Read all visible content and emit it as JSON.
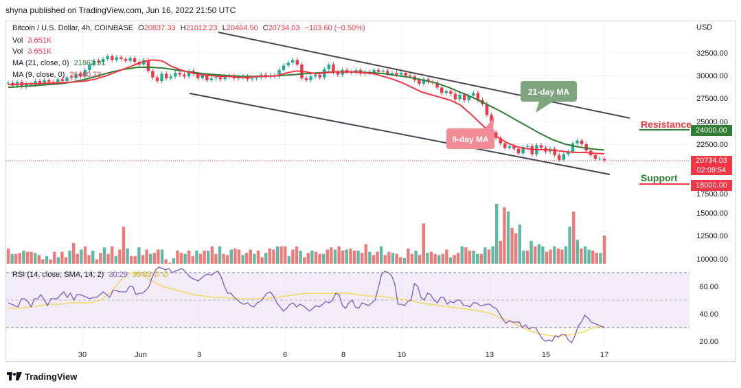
{
  "header": {
    "published": "shyna published on TradingView.com, Jun 16, 2022 21:50 UTC"
  },
  "legend": {
    "symbol": "Bitcoin / U.S. Dollar, 4h, COINBASE",
    "open_label": "O",
    "open": "20837.33",
    "high_label": "H",
    "high": "21012.23",
    "low_label": "L",
    "low": "20464.50",
    "close_label": "C",
    "close": "20734.03",
    "change": "−103.60 (−0.50%)",
    "vol1_label": "Vol",
    "vol1": "3.651K",
    "vol2_label": "Vol",
    "vol2": "3.651K",
    "ma21_label": "MA (21, close, 0)",
    "ma21": "21862.91",
    "ma9_label": "MA (9, close, 0)",
    "ma9": "21460.73",
    "rsi_label": "RSI (14, close, SMA, 14, 2)",
    "rsi": "30.29",
    "rsi_extra": "30.83  ∅  ∅"
  },
  "currency": "USD",
  "price_badge": {
    "price": "20734.03",
    "countdown": "02:09:54"
  },
  "resistance": {
    "label": "Resistance",
    "price": "24000.00"
  },
  "support": {
    "label": "Support",
    "price": "18000.00"
  },
  "ma_labels": {
    "ma21": "21-day MA",
    "ma9": "9-day MA"
  },
  "colors": {
    "up": "#22ab94",
    "down": "#f23645",
    "ma9": "#f23645",
    "ma21": "#2e7d32",
    "vol_up": "#5fb9a5",
    "vol_down": "#ee7a7a",
    "rsi": "#7e57c2",
    "rsi_ma": "#f5d54a",
    "resistance": "#2e7d32",
    "support": "#f23645"
  },
  "chart_data": {
    "type": "candlestick",
    "timeframe": "4h",
    "x_ticks": [
      "30",
      "Jun",
      "3",
      "6",
      "8",
      "10",
      "13",
      "15",
      "17"
    ],
    "price_ticks": [
      "32500.00",
      "30000.00",
      "27500.00",
      "25000.00",
      "22500.00",
      "17500.00",
      "15000.00",
      "12500.00",
      "10000.00"
    ],
    "rsi_ticks": [
      "60.00",
      "40.00",
      "20.00"
    ],
    "close_series": [
      29200,
      28900,
      29300,
      28800,
      29100,
      29000,
      29400,
      29100,
      29500,
      29300,
      29200,
      29600,
      29400,
      29800,
      29700,
      30200,
      29900,
      30600,
      31200,
      31600,
      31500,
      31800,
      32100,
      31700,
      32000,
      31800,
      31600,
      31900,
      31500,
      31200,
      31700,
      30500,
      29800,
      29400,
      30200,
      29700,
      29900,
      30300,
      30100,
      29900,
      30500,
      30200,
      29700,
      30000,
      29500,
      29700,
      29800,
      29600,
      29900,
      30000,
      29700,
      29800,
      29900,
      29600,
      29700,
      29800,
      30100,
      29900,
      30000,
      29900,
      30600,
      31100,
      31400,
      31700,
      31200,
      29700,
      29500,
      29900,
      30100,
      29800,
      30700,
      31200,
      30400,
      30100,
      30600,
      30400,
      30300,
      30600,
      30200,
      30400,
      30300,
      30600,
      30400,
      30500,
      30200,
      30300,
      30100,
      30300,
      30000,
      29900,
      29500,
      29100,
      29600,
      29300,
      29200,
      28700,
      28100,
      28300,
      28000,
      27400,
      27900,
      27300,
      27800,
      28100,
      27300,
      26900,
      25700,
      23800,
      23200,
      22600,
      22100,
      22300,
      22000,
      21500,
      22200,
      22300,
      21400,
      22400,
      22100,
      21700,
      22000,
      21300,
      20800,
      21400,
      21700,
      22600,
      22900,
      22500,
      21800,
      21300,
      20900,
      20900,
      20734
    ],
    "ma9_approx": [
      29000,
      29050,
      29100,
      29100,
      29150,
      29200,
      29250,
      29300,
      29400,
      29600,
      29900,
      30300,
      30700,
      31100,
      31500,
      31700,
      31600,
      31000,
      30600,
      30300,
      30100,
      30000,
      29900,
      29900,
      29800,
      29800,
      29900,
      29900,
      30000,
      30300,
      30500,
      30400,
      30200,
      30300,
      30400,
      30400,
      30400,
      30300,
      30200,
      29900,
      29600,
      29200,
      28700,
      28200,
      27900,
      27600,
      27300,
      26800,
      25900,
      24900,
      23900,
      23200,
      22600,
      22200,
      22000,
      21900,
      21900,
      21800,
      21700,
      21600,
      21600,
      21500,
      21460
    ],
    "ma21_approx": [
      28700,
      28800,
      28900,
      29000,
      29100,
      29300,
      29600,
      30000,
      30400,
      30700,
      30900,
      30900,
      30800,
      30600,
      30400,
      30200,
      30100,
      30000,
      29900,
      29900,
      29900,
      30000,
      30100,
      30200,
      30300,
      30400,
      30400,
      30400,
      30300,
      30200,
      30000,
      29800,
      29500,
      29200,
      28700,
      28100,
      27500,
      26800,
      26100,
      25300,
      24500,
      23700,
      23000,
      22500,
      22200,
      22000,
      21862
    ],
    "volume_k": [
      3.4,
      2.9,
      2.9,
      3.0,
      3.2,
      3.1,
      3.1,
      3.0,
      2.8,
      2.4,
      2.7,
      2.4,
      3.1,
      2.6,
      3.1,
      2.6,
      3.2,
      3.9,
      2.9,
      3.3,
      3.6,
      2.8,
      3.2,
      2.4,
      3.0,
      3.5,
      2.9,
      3.6,
      2.7,
      3.3,
      5.4,
      3.4,
      2.7,
      2.7,
      3.5,
      2.8,
      3.3,
      2.9,
      3.0,
      3.3,
      3.3,
      2.4,
      2.1,
      2.5,
      3.2,
      3.0,
      2.9,
      3.2,
      2.7,
      3.2,
      2.9,
      3.2,
      3.2,
      3.6,
      2.9,
      3.6,
      2.9,
      2.8,
      3.3,
      3.4,
      3.3,
      2.8,
      3.0,
      3.3,
      2.9,
      3.2,
      2.6,
      3.0,
      3.4,
      3.3,
      3.6,
      3.6,
      3.6,
      2.7,
      3.3,
      3.6,
      3.2,
      2.6,
      3.0,
      3.2,
      3.1,
      2.9,
      2.9,
      3.3,
      3.5,
      3.3,
      3.6,
      3.2,
      3.3,
      3.4,
      3.2,
      3.2,
      3.0,
      3.8,
      3.1,
      2.8,
      3.1,
      3.6,
      2.8,
      3.1,
      3.0,
      2.9,
      2.6,
      2.5,
      3.4,
      2.9,
      3.2,
      2.8,
      5.7,
      3.0,
      3.1,
      2.9,
      2.8,
      2.9,
      3.3,
      2.6,
      2.8,
      3.0,
      3.6,
      3.5,
      3.2,
      3.2,
      2.9,
      2.9,
      3.5,
      3.3,
      3.6,
      7.5,
      4.1,
      7.2,
      6.8,
      5.3,
      4.8,
      5.6,
      3.2,
      3.2,
      4.1,
      3.6,
      3.8,
      3.6,
      3.1,
      3.3,
      3.6,
      3.4,
      3.3,
      3.6,
      5.4,
      6.8,
      4.2,
      3.4,
      3.6,
      3.3,
      3.2,
      3.0,
      3.0,
      4.6
    ],
    "rsi_series": [
      48,
      47,
      46,
      45,
      51,
      51,
      49,
      45,
      51,
      51,
      54,
      50,
      46,
      51,
      51,
      51,
      54,
      56,
      52,
      55,
      50,
      54,
      54,
      53,
      52,
      51,
      52,
      52,
      54,
      56,
      54,
      52,
      57,
      57,
      56,
      56,
      56,
      60,
      60,
      54,
      55,
      55,
      57,
      60,
      67,
      72,
      74,
      73,
      72,
      73,
      70,
      71,
      72,
      73,
      71,
      68,
      66,
      65,
      64,
      66,
      68,
      69,
      68,
      70,
      71,
      67,
      60,
      55,
      55,
      52,
      50,
      48,
      47,
      48,
      46,
      45,
      48,
      49,
      52,
      55,
      56,
      53,
      48,
      45,
      42,
      44,
      47,
      48,
      45,
      47,
      46,
      44,
      42,
      44,
      46,
      45,
      47,
      49,
      48,
      50,
      55,
      54,
      46,
      44,
      48,
      50,
      45,
      44,
      48,
      47,
      46,
      48,
      50,
      59,
      69,
      71,
      70,
      68,
      62,
      47,
      47,
      46,
      49,
      50,
      62,
      60,
      52,
      50,
      55,
      54,
      50,
      48,
      52,
      52,
      47,
      49,
      48,
      50,
      50,
      46,
      46,
      45,
      48,
      48,
      46,
      46,
      47,
      47,
      45,
      44,
      40,
      36,
      33,
      35,
      34,
      34,
      34,
      30,
      32,
      29,
      30,
      30,
      26,
      22,
      20,
      21,
      20,
      24,
      23,
      25,
      25,
      21,
      19,
      24,
      31,
      34,
      39,
      37,
      34,
      33,
      32,
      31,
      30
    ],
    "rsi_ma_approx": [
      44,
      44,
      45,
      46,
      47,
      47,
      48,
      48,
      48,
      50,
      56,
      65,
      70,
      69,
      64,
      60,
      58,
      56,
      54,
      53,
      52,
      52,
      51,
      51,
      51,
      51,
      52,
      53,
      54,
      55,
      55,
      55,
      55,
      55,
      54,
      53,
      53,
      52,
      51,
      50,
      48,
      47,
      46,
      45,
      44,
      43,
      42,
      40,
      37,
      34,
      30,
      27,
      25,
      24,
      24,
      25,
      27,
      30,
      31
    ],
    "ylim_price": [
      17500,
      33500
    ],
    "ylim_rsi": [
      15,
      75
    ],
    "rsi_band": [
      30,
      70
    ]
  }
}
